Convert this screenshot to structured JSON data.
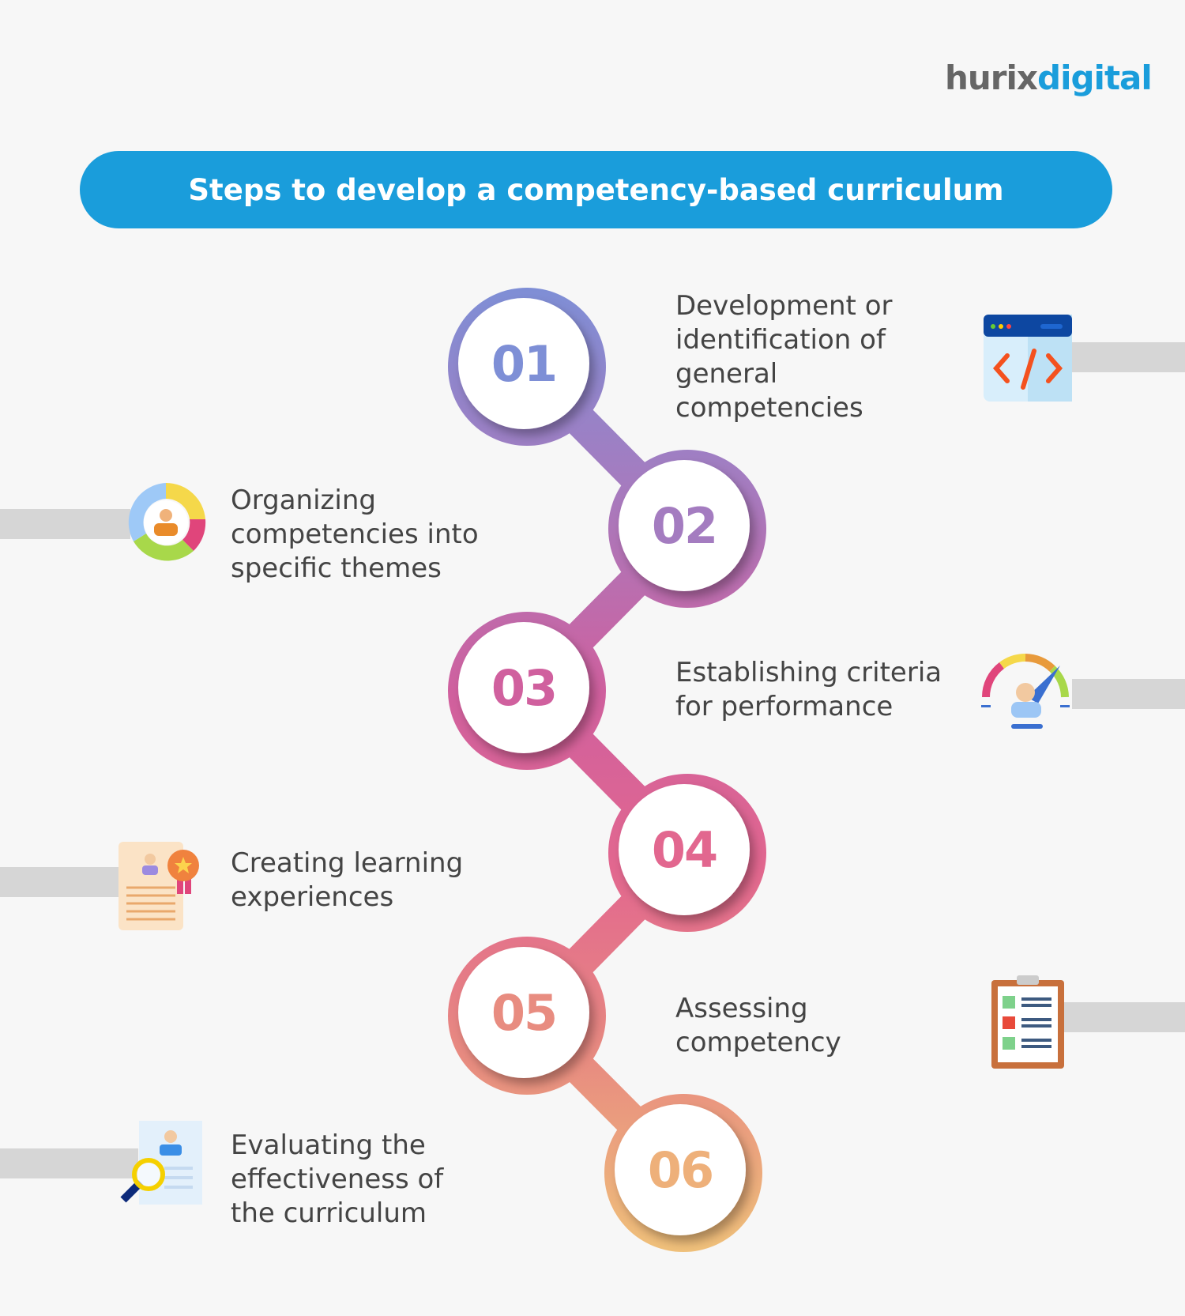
{
  "logo": {
    "part1": "hurix",
    "part2": "digital"
  },
  "title": "Steps to develop a competency-based curriculum",
  "colors": {
    "banner": "#1a9ddb",
    "step_colors": [
      "#7e8fd6",
      "#a47cc0",
      "#d0609e",
      "#e2678f",
      "#e88c80",
      "#eeb07a"
    ]
  },
  "steps": [
    {
      "number": "01",
      "text": "Development or identification of general competencies",
      "icon": "code-window-icon"
    },
    {
      "number": "02",
      "text": "Organizing competencies into specific themes",
      "icon": "user-donut-chart-icon"
    },
    {
      "number": "03",
      "text": "Establishing criteria for performance",
      "icon": "performance-gauge-icon"
    },
    {
      "number": "04",
      "text": "Creating learning experiences",
      "icon": "certificate-icon"
    },
    {
      "number": "05",
      "text": "Assessing competency",
      "icon": "checklist-clipboard-icon"
    },
    {
      "number": "06",
      "text": "Evaluating the effectiveness of the curriculum",
      "icon": "profile-magnifier-icon"
    }
  ]
}
